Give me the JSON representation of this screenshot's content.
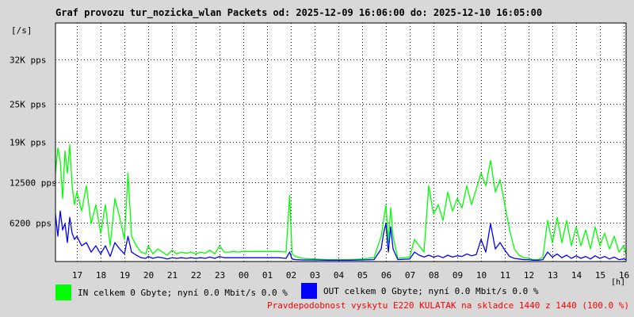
{
  "title": "Graf provozu tur_nozicka_wlan Packets od: 2025-12-09 16:06:00 do: 2025-12-10 16:05:00",
  "note": "Pravdepodobnost vyskytu E220 KULATAK na skladce 1440 z 1440 (100.0 %)",
  "colors": {
    "in": "#00ff00",
    "out": "#0000ff",
    "background": "#d8d8d8",
    "plot": "#ffffff",
    "grid": "#000000"
  },
  "chart_data": {
    "type": "line",
    "ylabel": "[/s]",
    "xlabel": "[h]",
    "ylim": [
      0,
      37800
    ],
    "y_ticks": [
      {
        "value": 6200,
        "label": "6200 pps"
      },
      {
        "value": 12500,
        "label": "12500 pps"
      },
      {
        "value": 19000,
        "label": "19K pps"
      },
      {
        "value": 25000,
        "label": "25K pps"
      },
      {
        "value": 32000,
        "label": "32K pps"
      }
    ],
    "xlim": [
      16.1,
      40.1
    ],
    "x_ticks": [
      {
        "value": 17,
        "label": "17"
      },
      {
        "value": 18,
        "label": "18"
      },
      {
        "value": 19,
        "label": "19"
      },
      {
        "value": 20,
        "label": "20"
      },
      {
        "value": 21,
        "label": "21"
      },
      {
        "value": 22,
        "label": "22"
      },
      {
        "value": 23,
        "label": "23"
      },
      {
        "value": 24,
        "label": "00"
      },
      {
        "value": 25,
        "label": "01"
      },
      {
        "value": 26,
        "label": "02"
      },
      {
        "value": 27,
        "label": "03"
      },
      {
        "value": 28,
        "label": "04"
      },
      {
        "value": 29,
        "label": "05"
      },
      {
        "value": 30,
        "label": "06"
      },
      {
        "value": 31,
        "label": "07"
      },
      {
        "value": 32,
        "label": "08"
      },
      {
        "value": 33,
        "label": "09"
      },
      {
        "value": 34,
        "label": "10"
      },
      {
        "value": 35,
        "label": "11"
      },
      {
        "value": 36,
        "label": "12"
      },
      {
        "value": 37,
        "label": "13"
      },
      {
        "value": 38,
        "label": "14"
      },
      {
        "value": 39,
        "label": "15"
      },
      {
        "value": 40,
        "label": "16"
      }
    ],
    "grid": true,
    "series": [
      {
        "name": "IN",
        "legend": "IN celkem 0 Gbyte; nyní   0.0 Mbit/s 0.0 %",
        "color": "#00ff00",
        "x": [
          16.1,
          16.2,
          16.3,
          16.4,
          16.5,
          16.6,
          16.7,
          16.8,
          16.9,
          17.0,
          17.2,
          17.4,
          17.6,
          17.8,
          18.0,
          18.2,
          18.4,
          18.6,
          18.8,
          19.0,
          19.15,
          19.3,
          19.5,
          19.7,
          19.9,
          20.0,
          20.2,
          20.4,
          20.6,
          20.8,
          21.0,
          21.2,
          21.4,
          21.6,
          21.8,
          22.0,
          22.2,
          22.4,
          22.6,
          22.8,
          23.0,
          23.2,
          23.4,
          23.6,
          23.8,
          24.0,
          24.5,
          25.0,
          25.5,
          25.8,
          25.95,
          26.05,
          26.2,
          26.5,
          27.0,
          27.5,
          28.0,
          28.5,
          29.0,
          29.5,
          29.8,
          29.9,
          30.0,
          30.1,
          30.2,
          30.3,
          30.5,
          31.0,
          31.2,
          31.4,
          31.6,
          31.8,
          32.0,
          32.2,
          32.4,
          32.6,
          32.8,
          33.0,
          33.2,
          33.4,
          33.6,
          33.8,
          34.0,
          34.2,
          34.4,
          34.6,
          34.8,
          35.0,
          35.2,
          35.4,
          35.6,
          35.8,
          36.0,
          36.2,
          36.4,
          36.6,
          36.8,
          37.0,
          37.2,
          37.4,
          37.6,
          37.8,
          38.0,
          38.2,
          38.4,
          38.6,
          38.8,
          39.0,
          39.2,
          39.4,
          39.6,
          39.8,
          40.0,
          40.1
        ],
        "values": [
          14000,
          18000,
          16000,
          10000,
          17500,
          14000,
          18500,
          12000,
          9000,
          11000,
          8000,
          12000,
          6000,
          9000,
          4500,
          9000,
          2500,
          10000,
          7000,
          3500,
          14000,
          4000,
          2500,
          1500,
          1200,
          2500,
          1200,
          2000,
          1500,
          1000,
          1800,
          1200,
          1500,
          1300,
          1500,
          1200,
          1500,
          1300,
          1800,
          1200,
          2500,
          1500,
          1500,
          1600,
          1500,
          1600,
          1600,
          1600,
          1600,
          1500,
          10500,
          1200,
          800,
          500,
          400,
          300,
          300,
          300,
          400,
          600,
          4000,
          6500,
          9000,
          3000,
          8500,
          4000,
          500,
          700,
          3500,
          2500,
          1500,
          12000,
          7500,
          9000,
          6500,
          11000,
          8000,
          10000,
          8500,
          12000,
          9000,
          11500,
          14000,
          12000,
          16000,
          11000,
          13000,
          9000,
          5000,
          2000,
          1000,
          600,
          500,
          300,
          300,
          700,
          6500,
          3000,
          7000,
          3000,
          6500,
          2500,
          5500,
          2500,
          5000,
          2000,
          5500,
          2500,
          4500,
          2000,
          4000,
          1500,
          2500,
          1200
        ]
      },
      {
        "name": "OUT",
        "legend": "OUT celkem 0 Gbyte; nyní   0.0 Mbit/s 0.0 %",
        "color": "#0000ff",
        "x": [
          16.1,
          16.2,
          16.3,
          16.4,
          16.5,
          16.6,
          16.7,
          16.8,
          16.9,
          17.0,
          17.2,
          17.4,
          17.6,
          17.8,
          18.0,
          18.2,
          18.4,
          18.6,
          18.8,
          19.0,
          19.15,
          19.3,
          19.5,
          19.7,
          19.9,
          20.0,
          20.2,
          20.4,
          20.6,
          20.8,
          21.0,
          21.2,
          21.4,
          21.6,
          21.8,
          22.0,
          22.2,
          22.4,
          22.6,
          22.8,
          23.0,
          23.2,
          23.4,
          23.6,
          23.8,
          24.0,
          24.5,
          25.0,
          25.5,
          25.8,
          25.95,
          26.05,
          26.2,
          26.5,
          27.0,
          27.5,
          28.0,
          28.5,
          29.0,
          29.5,
          29.8,
          29.9,
          30.0,
          30.1,
          30.2,
          30.3,
          30.5,
          31.0,
          31.2,
          31.4,
          31.6,
          31.8,
          32.0,
          32.2,
          32.4,
          32.6,
          32.8,
          33.0,
          33.2,
          33.4,
          33.6,
          33.8,
          34.0,
          34.2,
          34.4,
          34.6,
          34.8,
          35.0,
          35.2,
          35.4,
          35.6,
          35.8,
          36.0,
          36.2,
          36.4,
          36.6,
          36.8,
          37.0,
          37.2,
          37.4,
          37.6,
          37.8,
          38.0,
          38.2,
          38.4,
          38.6,
          38.8,
          39.0,
          39.2,
          39.4,
          39.6,
          39.8,
          40.0,
          40.1
        ],
        "values": [
          7500,
          4000,
          8000,
          5000,
          6000,
          3000,
          7000,
          4500,
          3500,
          4000,
          2500,
          3000,
          1500,
          2500,
          1200,
          2500,
          800,
          3000,
          2000,
          1200,
          4000,
          1500,
          1000,
          600,
          500,
          800,
          500,
          700,
          600,
          400,
          600,
          500,
          600,
          500,
          600,
          500,
          600,
          500,
          700,
          500,
          800,
          600,
          600,
          600,
          600,
          600,
          600,
          600,
          600,
          500,
          1500,
          400,
          300,
          250,
          250,
          200,
          200,
          200,
          250,
          300,
          2000,
          4500,
          6000,
          1500,
          5500,
          2000,
          300,
          400,
          1500,
          1000,
          700,
          1000,
          700,
          900,
          600,
          1000,
          700,
          900,
          800,
          1200,
          900,
          1100,
          3500,
          1500,
          6000,
          2000,
          3000,
          1800,
          800,
          500,
          400,
          300,
          300,
          200,
          200,
          300,
          1500,
          700,
          1200,
          600,
          1000,
          500,
          900,
          500,
          800,
          400,
          900,
          500,
          800,
          400,
          700,
          300,
          400,
          300
        ]
      }
    ]
  }
}
